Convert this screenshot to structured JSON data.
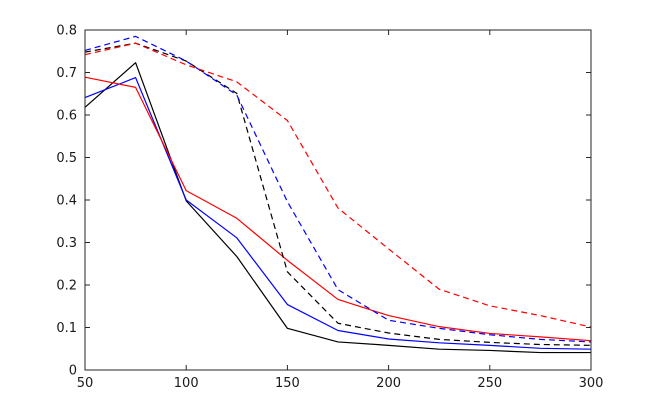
{
  "chart_data": {
    "type": "line",
    "title": "",
    "xlabel": "",
    "ylabel": "",
    "xlim": [
      50,
      300
    ],
    "ylim": [
      0,
      0.8
    ],
    "x_ticks": [
      50,
      100,
      150,
      200,
      250,
      300
    ],
    "x_tick_labels": [
      "50",
      "100",
      "150",
      "200",
      "250",
      "300"
    ],
    "y_ticks": [
      0,
      0.1,
      0.2,
      0.3,
      0.4,
      0.5,
      0.6,
      0.7,
      0.8
    ],
    "y_tick_labels": [
      "0",
      "0.1",
      "0.2",
      "0.3",
      "0.4",
      "0.5",
      "0.6",
      "0.7",
      "0.8"
    ],
    "grid": false,
    "legend": false,
    "x": [
      50,
      75,
      100,
      125,
      150,
      175,
      200,
      225,
      250,
      275,
      300
    ],
    "series": [
      {
        "color": "#000000",
        "dash": "solid",
        "values": [
          0.618,
          0.723,
          0.398,
          0.267,
          0.098,
          0.066,
          0.058,
          0.049,
          0.046,
          0.041,
          0.041
        ]
      },
      {
        "color": "#0000ff",
        "dash": "solid",
        "values": [
          0.641,
          0.688,
          0.4,
          0.311,
          0.154,
          0.093,
          0.073,
          0.064,
          0.058,
          0.051,
          0.049
        ]
      },
      {
        "color": "#ff0000",
        "dash": "solid",
        "values": [
          0.689,
          0.665,
          0.422,
          0.357,
          0.258,
          0.166,
          0.128,
          0.102,
          0.086,
          0.078,
          0.069
        ]
      },
      {
        "color": "#000000",
        "dash": "dashed",
        "values": [
          0.748,
          0.769,
          0.727,
          0.651,
          0.231,
          0.11,
          0.087,
          0.072,
          0.065,
          0.06,
          0.058
        ]
      },
      {
        "color": "#0000ff",
        "dash": "dashed",
        "values": [
          0.752,
          0.785,
          0.727,
          0.647,
          0.396,
          0.189,
          0.117,
          0.098,
          0.083,
          0.072,
          0.066
        ]
      },
      {
        "color": "#ff0000",
        "dash": "dashed",
        "values": [
          0.742,
          0.769,
          0.718,
          0.678,
          0.587,
          0.381,
          0.285,
          0.19,
          0.151,
          0.128,
          0.101
        ]
      }
    ]
  }
}
